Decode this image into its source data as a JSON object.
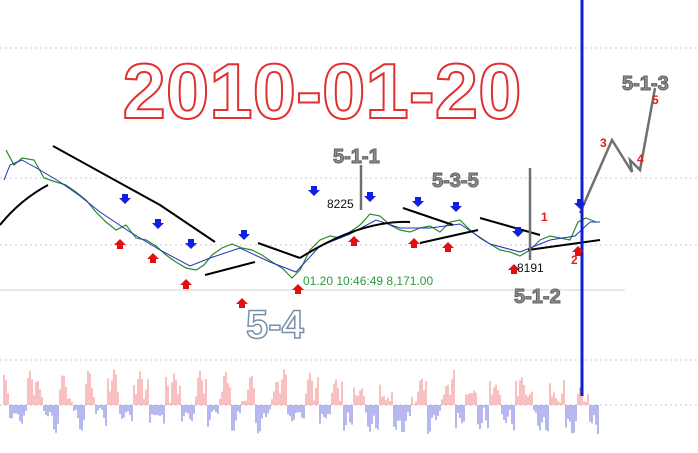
{
  "title": "2010-01-20",
  "labels": {
    "w511": "5-1-1",
    "p8225": "8225",
    "w535": "5-3-5",
    "n1": "1",
    "w513": "5-1-3",
    "n5": "5",
    "n3": "3",
    "n4": "4",
    "n2": "2",
    "p8191": "8191",
    "w512": "5-1-2",
    "w54": "5-4"
  },
  "status": "01.20 10:46:49  8,171.00"
}
